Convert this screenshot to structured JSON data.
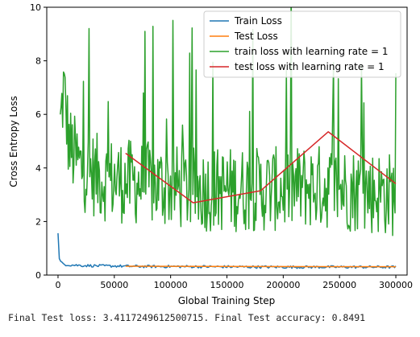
{
  "output_text": "Final Test loss: 3.4117249612500715. Final Test accuracy: 0.8491",
  "chart_data": {
    "type": "line",
    "title": "",
    "xlabel": "Global Training Step",
    "ylabel": "Cross Entropy Loss",
    "xlim": [
      -10000,
      310000
    ],
    "ylim": [
      0,
      10
    ],
    "xticks": [
      0,
      50000,
      100000,
      150000,
      200000,
      250000,
      300000
    ],
    "yticks": [
      0,
      2,
      4,
      6,
      8,
      10
    ],
    "grid": false,
    "legend_position": "top-right",
    "series": [
      {
        "name": "Train Loss",
        "color": "#1f77b4",
        "style": "noisy",
        "x": [
          0,
          1000,
          3000,
          6000,
          10000,
          20000,
          30000,
          40000,
          50000,
          60000,
          80000,
          100000,
          150000,
          200000,
          250000,
          300000
        ],
        "y": [
          1.6,
          0.6,
          0.45,
          0.4,
          0.38,
          0.36,
          0.35,
          0.34,
          0.34,
          0.33,
          0.32,
          0.32,
          0.31,
          0.3,
          0.3,
          0.3
        ],
        "noise": 0.05
      },
      {
        "name": "Test Loss",
        "color": "#ff7f0e",
        "style": "smooth",
        "x": [
          60000,
          300000
        ],
        "y": [
          0.33,
          0.31
        ]
      },
      {
        "name": "train loss with learning rate = 1",
        "color": "#2ca02c",
        "style": "noisy",
        "x": [
          2000,
          5000,
          10000,
          20000,
          40000,
          60000,
          80000,
          100000,
          120000,
          140000,
          160000,
          180000,
          200000,
          220000,
          240000,
          260000,
          280000,
          300000
        ],
        "y": [
          5.5,
          7.0,
          4.8,
          4.0,
          3.6,
          3.5,
          3.4,
          3.3,
          3.2,
          3.2,
          3.2,
          3.2,
          3.2,
          3.3,
          3.3,
          3.2,
          3.1,
          3.0
        ],
        "noise": 1.0
      },
      {
        "name": "test loss with learning rate = 1",
        "color": "#d62728",
        "style": "smooth",
        "x": [
          60000,
          120000,
          180000,
          240000,
          300000
        ],
        "y": [
          4.55,
          2.7,
          3.15,
          5.35,
          3.41
        ]
      }
    ]
  }
}
